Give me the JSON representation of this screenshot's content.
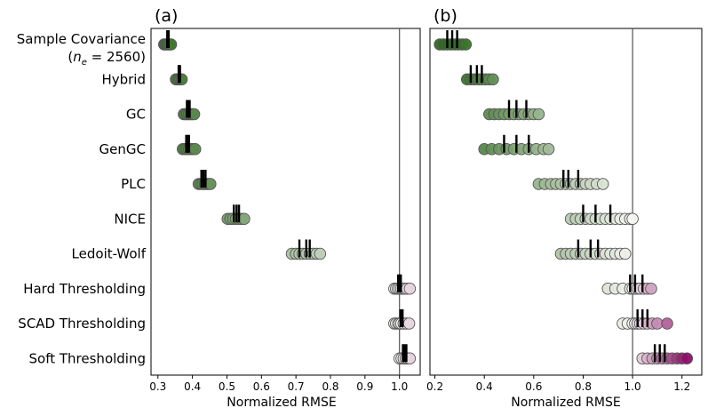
{
  "chart_data": {
    "type": "scatter",
    "categories": [
      "Sample Covariance",
      "Hybrid",
      "GC",
      "GenGC",
      "PLC",
      "NICE",
      "Ledoit-Wolf",
      "Hard Thresholding",
      "SCAD Thresholding",
      "Soft Thresholding"
    ],
    "category_sublabel": {
      "symbol": "n",
      "subscript": "e",
      "rest": " = 2560)"
    },
    "reference_x": 1.0,
    "color_scale": {
      "low": "#2d6a1e",
      "mid": "#f4f4f0",
      "high": "#8e0e6a",
      "midpoint": 1.0,
      "range": [
        0.3,
        1.22
      ]
    },
    "panels": [
      {
        "label": "(a)",
        "xlabel": "Normalized RMSE",
        "xlim": [
          0.28,
          1.06
        ],
        "xticks": [
          0.3,
          0.4,
          0.5,
          0.6,
          0.7,
          0.8,
          0.9,
          1.0
        ],
        "xtick_labels": [
          "0.3",
          "0.4",
          "0.5",
          "0.6",
          "0.7",
          "0.8",
          "0.9",
          "1.0"
        ],
        "series": [
          {
            "name": "Sample Covariance",
            "points": [
              0.318,
              0.322,
              0.326,
              0.33,
              0.334,
              0.338
            ],
            "markers": [
              0.327,
              0.329,
              0.331
            ]
          },
          {
            "name": "Hybrid",
            "points": [
              0.352,
              0.357,
              0.361,
              0.365,
              0.369
            ],
            "markers": [
              0.36,
              0.362,
              0.364
            ]
          },
          {
            "name": "GC",
            "points": [
              0.375,
              0.38,
              0.385,
              0.39,
              0.395,
              0.4,
              0.405
            ],
            "markers": [
              0.384,
              0.388,
              0.392
            ]
          },
          {
            "name": "GenGC",
            "points": [
              0.372,
              0.378,
              0.384,
              0.39,
              0.396,
              0.402,
              0.408
            ],
            "markers": [
              0.382,
              0.386,
              0.39
            ]
          },
          {
            "name": "PLC",
            "points": [
              0.418,
              0.424,
              0.43,
              0.436,
              0.442,
              0.448,
              0.452
            ],
            "markers": [
              0.426,
              0.432,
              0.438
            ]
          },
          {
            "name": "NICE",
            "points": [
              0.502,
              0.51,
              0.518,
              0.526,
              0.534,
              0.542,
              0.55
            ],
            "markers": [
              0.52,
              0.528,
              0.535
            ]
          },
          {
            "name": "Ledoit-Wolf",
            "points": [
              0.688,
              0.7,
              0.71,
              0.72,
              0.73,
              0.74,
              0.75,
              0.76,
              0.77
            ],
            "markers": [
              0.71,
              0.73,
              0.74
            ]
          },
          {
            "name": "Hard Thresholding",
            "points": [
              0.985,
              0.99,
              0.995,
              1.0,
              1.005,
              1.01,
              1.015,
              1.022,
              1.03
            ],
            "markers": [
              0.996,
              1.0,
              1.004
            ]
          },
          {
            "name": "SCAD Thresholding",
            "points": [
              0.985,
              0.99,
              0.996,
              1.0,
              1.005,
              1.012,
              1.02,
              1.028
            ],
            "markers": [
              1.003,
              1.006,
              1.009
            ]
          },
          {
            "name": "Soft Thresholding",
            "points": [
              1.0,
              1.006,
              1.012,
              1.018,
              1.024,
              1.03
            ],
            "markers": [
              1.01,
              1.015,
              1.02
            ]
          }
        ]
      },
      {
        "label": "(b)",
        "xlabel": "Normalized RMSE",
        "xlim": [
          0.18,
          1.28
        ],
        "xticks": [
          0.2,
          0.4,
          0.6,
          0.8,
          1.0,
          1.2
        ],
        "xtick_labels": [
          "0.2",
          "0.4",
          "0.6",
          "0.8",
          "1.0",
          "1.2"
        ],
        "series": [
          {
            "name": "Sample Covariance",
            "points": [
              0.22,
              0.235,
              0.25,
              0.265,
              0.28,
              0.295,
              0.31,
              0.325
            ],
            "markers": [
              0.25,
              0.27,
              0.29
            ]
          },
          {
            "name": "Hybrid",
            "points": [
              0.33,
              0.345,
              0.36,
              0.375,
              0.39,
              0.405,
              0.42,
              0.435
            ],
            "markers": [
              0.345,
              0.37,
              0.39
            ]
          },
          {
            "name": "GC",
            "points": [
              0.42,
              0.44,
              0.46,
              0.48,
              0.5,
              0.52,
              0.54,
              0.56,
              0.58,
              0.6,
              0.62
            ],
            "markers": [
              0.5,
              0.53,
              0.57
            ]
          },
          {
            "name": "GenGC",
            "points": [
              0.4,
              0.43,
              0.46,
              0.49,
              0.52,
              0.55,
              0.58,
              0.61,
              0.64,
              0.66
            ],
            "markers": [
              0.48,
              0.53,
              0.58
            ]
          },
          {
            "name": "PLC",
            "points": [
              0.62,
              0.645,
              0.67,
              0.69,
              0.71,
              0.73,
              0.75,
              0.77,
              0.79,
              0.81,
              0.83,
              0.855,
              0.88
            ],
            "markers": [
              0.72,
              0.74,
              0.78
            ]
          },
          {
            "name": "NICE",
            "points": [
              0.75,
              0.77,
              0.79,
              0.81,
              0.83,
              0.85,
              0.87,
              0.89,
              0.91,
              0.93,
              0.95,
              0.97,
              0.99,
              1.0
            ],
            "markers": [
              0.8,
              0.85,
              0.91
            ]
          },
          {
            "name": "Ledoit-Wolf",
            "points": [
              0.71,
              0.73,
              0.75,
              0.77,
              0.79,
              0.81,
              0.83,
              0.85,
              0.87,
              0.89,
              0.91,
              0.93,
              0.95,
              0.97
            ],
            "markers": [
              0.78,
              0.83,
              0.86
            ]
          },
          {
            "name": "Hard Thresholding",
            "points": [
              0.9,
              0.93,
              0.96,
              0.99,
              1.0,
              1.01,
              1.02,
              1.03,
              1.045,
              1.06,
              1.075
            ],
            "markers": [
              0.99,
              1.01,
              1.04
            ]
          },
          {
            "name": "SCAD Thresholding",
            "points": [
              0.96,
              0.98,
              1.0,
              1.01,
              1.02,
              1.03,
              1.045,
              1.06,
              1.08,
              1.1,
              1.14
            ],
            "markers": [
              1.02,
              1.04,
              1.06
            ]
          },
          {
            "name": "Soft Thresholding",
            "points": [
              1.04,
              1.06,
              1.08,
              1.1,
              1.12,
              1.14,
              1.16,
              1.18,
              1.2,
              1.22
            ],
            "markers": [
              1.09,
              1.11,
              1.13
            ]
          }
        ]
      }
    ]
  }
}
